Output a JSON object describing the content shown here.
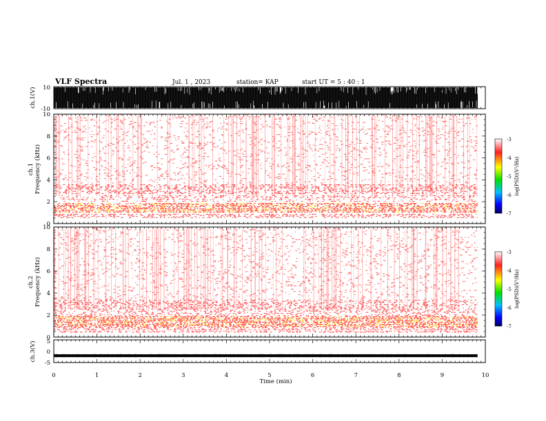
{
  "header": {
    "title": "VLF Spectra",
    "date": "Jul.  1  , 2023",
    "station": "station= KAP",
    "start_ut": "start  UT  =   5  : 40 : 1"
  },
  "colorbar": {
    "label": "log(PSD)(V²/Hz)",
    "ticks": [
      "-3",
      "-4",
      "-5",
      "-6",
      "-7"
    ]
  },
  "chart_data": [
    {
      "type": "line",
      "name": "ch1-waveform",
      "ylabel": "ch.1(V)",
      "ylim": [
        -10,
        10
      ],
      "y_ticks": [
        "10",
        "-10"
      ],
      "description_values": "broadband impulsive signal saturating between -10 and 10 V"
    },
    {
      "type": "heatmap",
      "name": "ch1-spectrogram",
      "ylabel_line1": "ch.1",
      "ylabel_line2": "Frequency  (kHz)",
      "ylim": [
        0,
        10
      ],
      "y_ticks": [
        "0",
        "2",
        "4",
        "6",
        "8",
        "10"
      ],
      "color_scale": [
        -7,
        -3
      ],
      "bands_khz": [
        {
          "from": 0.4,
          "to": 0.9,
          "level": -3.6
        },
        {
          "from": 0.9,
          "to": 1.9,
          "level": -3.3
        },
        {
          "from": 1.9,
          "to": 2.6,
          "level": -3.9
        },
        {
          "from": 2.6,
          "to": 3.6,
          "level": -3.8
        },
        {
          "from": 3.6,
          "to": 10,
          "level": -4.4
        }
      ]
    },
    {
      "type": "heatmap",
      "name": "ch2-spectrogram",
      "ylabel_line1": "ch.2",
      "ylabel_line2": "Frequency  (kHz)",
      "ylim": [
        0,
        10
      ],
      "y_ticks": [
        "0",
        "2",
        "4",
        "6",
        "8",
        "10"
      ],
      "color_scale": [
        -7,
        -3
      ],
      "bands_khz": [
        {
          "from": 0.4,
          "to": 0.9,
          "level": -3.6
        },
        {
          "from": 0.9,
          "to": 1.9,
          "level": -3.2
        },
        {
          "from": 1.9,
          "to": 2.4,
          "level": -3.9
        },
        {
          "from": 2.4,
          "to": 3.4,
          "level": -3.8
        },
        {
          "from": 3.4,
          "to": 10,
          "level": -4.4
        }
      ]
    },
    {
      "type": "line",
      "name": "ch3-waveform",
      "ylabel": "ch.3(V)",
      "ylim": [
        -5,
        5
      ],
      "y_ticks": [
        "5",
        "0",
        "-5"
      ],
      "baseline_v": -2,
      "amplitude_v": 0.6
    }
  ],
  "x_axis": {
    "label": "Time  (min)",
    "range": [
      0,
      10
    ],
    "ticks": [
      "0",
      "1",
      "2",
      "3",
      "4",
      "5",
      "6",
      "7",
      "8",
      "9",
      "10"
    ],
    "data_end_min": 9.82
  }
}
